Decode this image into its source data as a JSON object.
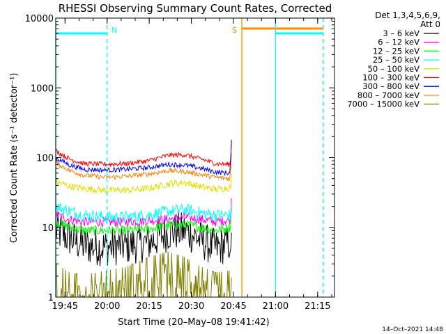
{
  "chart_data": {
    "type": "line",
    "title": "RHESSI Observing Summary Count Rates, Corrected",
    "xlabel": "Start Time (20–May–08 19:41:42)",
    "ylabel": "Corrected Count Rate (s⁻¹ detector⁻¹)",
    "y_scale": "log",
    "xlim": [
      "19:41:42",
      "21:21:00"
    ],
    "ylim": [
      1,
      10000
    ],
    "x_ticks": [
      "19:45",
      "20:00",
      "20:15",
      "20:30",
      "20:45",
      "21:00",
      "21:15"
    ],
    "y_ticks": [
      "1",
      "10",
      "100",
      "1000",
      "10000"
    ],
    "legend_position": "right",
    "legend_header": [
      "Det 1,3,4,5,6,9,",
      "Att 0"
    ],
    "timestamp": "14–Oct–2021 14:48",
    "annotations": [
      {
        "label": "N",
        "kind": "night",
        "from": "19:41:42",
        "to": "20:00",
        "color": "#00ffff"
      },
      {
        "label": "S",
        "kind": "saa",
        "from": "20:48",
        "to": "21:17",
        "color": "#ff8c00"
      },
      {
        "label": "",
        "kind": "night",
        "from": "21:00",
        "to": "21:17",
        "color": "#00ffff"
      }
    ],
    "series": [
      {
        "name": "3 – 6 keV",
        "color": "#000000",
        "x_minutes": [
          0,
          5,
          10,
          18,
          25,
          33,
          40,
          46,
          52,
          57,
          62
        ],
        "values": [
          9,
          7,
          5.5,
          5.2,
          5.5,
          6,
          8.5,
          9,
          6.5,
          5,
          6
        ]
      },
      {
        "name": "6 – 12 keV",
        "color": "#ff00ff",
        "x_minutes": [
          0,
          5,
          10,
          18,
          25,
          33,
          40,
          46,
          52,
          57,
          62
        ],
        "values": [
          15,
          13,
          12,
          12,
          12,
          12.5,
          13,
          14,
          13,
          12,
          13
        ]
      },
      {
        "name": "12 – 25 keV",
        "color": "#00ff00",
        "x_minutes": [
          0,
          5,
          10,
          18,
          25,
          33,
          40,
          46,
          52,
          57,
          62
        ],
        "values": [
          12,
          10,
          9,
          9,
          9,
          9.5,
          10.5,
          11,
          10,
          9,
          10
        ]
      },
      {
        "name": "25 – 50 keV",
        "color": "#00ffff",
        "x_minutes": [
          0,
          5,
          10,
          18,
          25,
          33,
          40,
          46,
          52,
          57,
          62
        ],
        "values": [
          20,
          17,
          15,
          14,
          14,
          15,
          17,
          18,
          16,
          15,
          15
        ]
      },
      {
        "name": "50 – 100 keV",
        "color": "#e0e000",
        "x_minutes": [
          0,
          5,
          10,
          18,
          25,
          33,
          40,
          46,
          52,
          57,
          62
        ],
        "values": [
          45,
          39,
          36,
          34,
          34,
          36,
          42,
          44,
          38,
          35,
          37
        ]
      },
      {
        "name": "100 – 300 keV",
        "color": "#ff0000",
        "x_minutes": [
          0,
          5,
          10,
          18,
          25,
          33,
          40,
          46,
          52,
          57,
          62
        ],
        "values": [
          125,
          95,
          82,
          80,
          82,
          90,
          108,
          110,
          95,
          82,
          80
        ]
      },
      {
        "name": "300 – 800 keV",
        "color": "#0000ff",
        "x_minutes": [
          0,
          5,
          10,
          18,
          25,
          33,
          40,
          46,
          52,
          57,
          62
        ],
        "values": [
          100,
          78,
          68,
          66,
          68,
          72,
          80,
          78,
          70,
          62,
          60
        ]
      },
      {
        "name": "800 – 7000 keV",
        "color": "#ff8000",
        "x_minutes": [
          0,
          5,
          10,
          18,
          25,
          33,
          40,
          46,
          52,
          57,
          62
        ],
        "values": [
          85,
          65,
          56,
          52,
          54,
          58,
          65,
          63,
          57,
          52,
          50
        ]
      },
      {
        "name": "7000 – 15000 keV",
        "color": "#808000",
        "x_minutes": [
          0,
          5,
          10,
          18,
          25,
          33,
          40,
          46,
          52,
          57,
          62
        ],
        "values": [
          2,
          1.5,
          1.4,
          1.6,
          1.8,
          2.5,
          3,
          2.5,
          1.8,
          1.5,
          1.6
        ]
      }
    ]
  }
}
